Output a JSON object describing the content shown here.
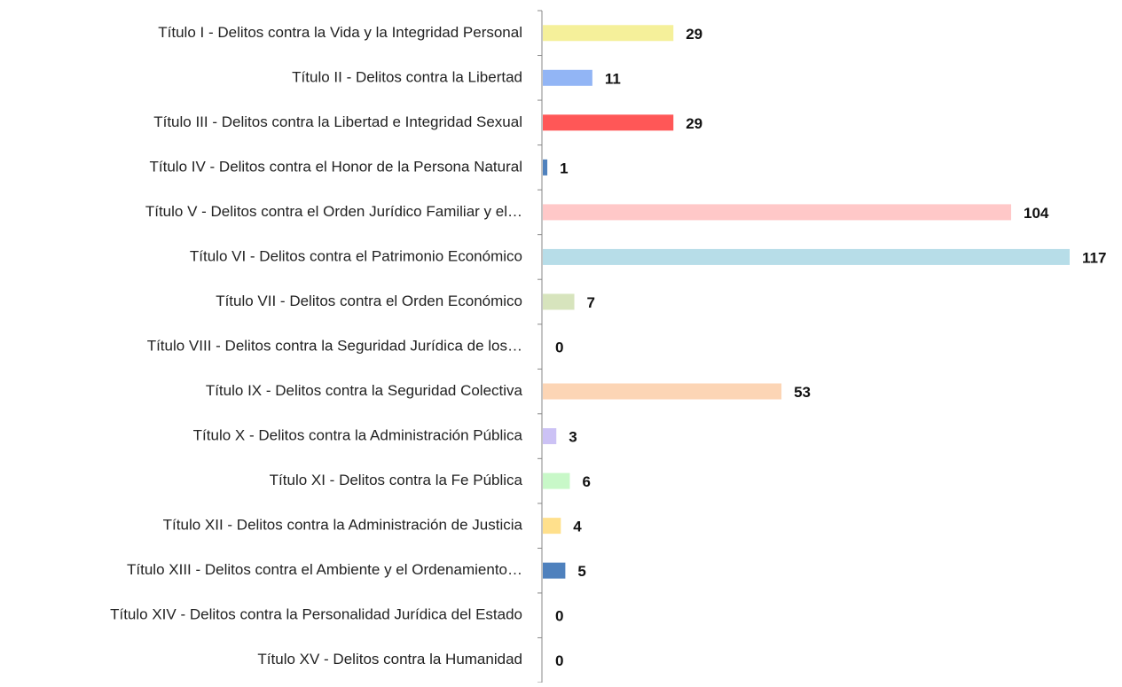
{
  "chart_data": {
    "type": "bar",
    "orientation": "horizontal",
    "categories": [
      "Título I - Delitos contra la Vida y la Integridad Personal",
      "Título II - Delitos contra la Libertad",
      "Título III - Delitos contra la Libertad e Integridad Sexual",
      "Título IV - Delitos contra el Honor de la Persona  Natural",
      "Título V - Delitos contra el Orden Jurídico Familiar y el…",
      "Título VI - Delitos contra el Patrimonio Económico",
      "Título VII - Delitos contra el Orden Económico",
      "Título VIII - Delitos  contra la Seguridad Jurídica de los…",
      "Título IX - Delitos contra la Seguridad Colectiva",
      "Título X - Delitos contra la Administración Pública",
      "Título XI - Delitos contra la Fe Pública",
      "Título XII - Delitos contra la Administración de Justicia",
      "Título XIII - Delitos contra el Ambiente y el Ordenamiento…",
      "Título XIV - Delitos contra la Personalidad Jurídica del Estado",
      "Título XV - Delitos contra la Humanidad"
    ],
    "values": [
      29,
      11,
      29,
      1,
      104,
      117,
      7,
      0,
      53,
      3,
      6,
      4,
      5,
      0,
      0
    ],
    "colors": [
      "#f5f09a",
      "#92b5f5",
      "#ff5757",
      "#4f81bd",
      "#ffc8c8",
      "#b7dde8",
      "#d7e4bd",
      "#c0c0c0",
      "#fcd5b5",
      "#ccc2f5",
      "#c8f8c8",
      "#ffe08c",
      "#4f81bd",
      "#c0c0c0",
      "#c0c0c0"
    ]
  }
}
